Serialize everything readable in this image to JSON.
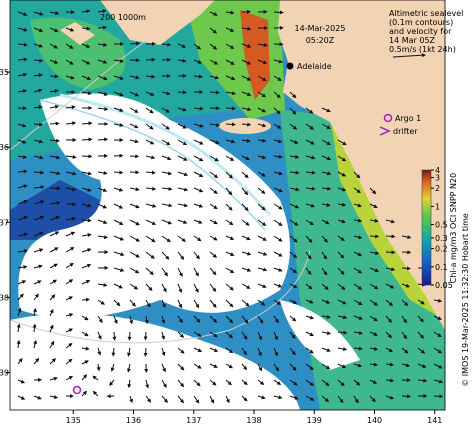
{
  "map": {
    "date": "14-Mar-2025",
    "time": "05:20Z",
    "depth_contours": "200 1000m",
    "places": [
      {
        "label": "Adelaide"
      }
    ],
    "legend_lines": [
      "Altimetric sealevel",
      "(0.1m contours)",
      "and velocity for",
      "14 Mar 05Z",
      "0.5m/s (1kt 24h)"
    ],
    "markers": [
      {
        "label": "Argo 1"
      },
      {
        "label": "drifter"
      }
    ],
    "xlim": [
      133.95,
      141.17
    ],
    "xticks": [
      135,
      136,
      137,
      138,
      139,
      140,
      141
    ],
    "ylim": [
      34.04,
      39.5
    ],
    "yticks": [
      35,
      36,
      37,
      38,
      39
    ],
    "colorbar": {
      "label": "Chl-a mg/m3 OCI SNPP N20",
      "lim": [
        0.05,
        4
      ],
      "log": true,
      "ticks": [
        4,
        3,
        2,
        1,
        0.5,
        0.3,
        0.2,
        0.1,
        0.05
      ]
    },
    "credit": "© IMOS 19-Mar-2025 11:32:30 Hobart time"
  }
}
